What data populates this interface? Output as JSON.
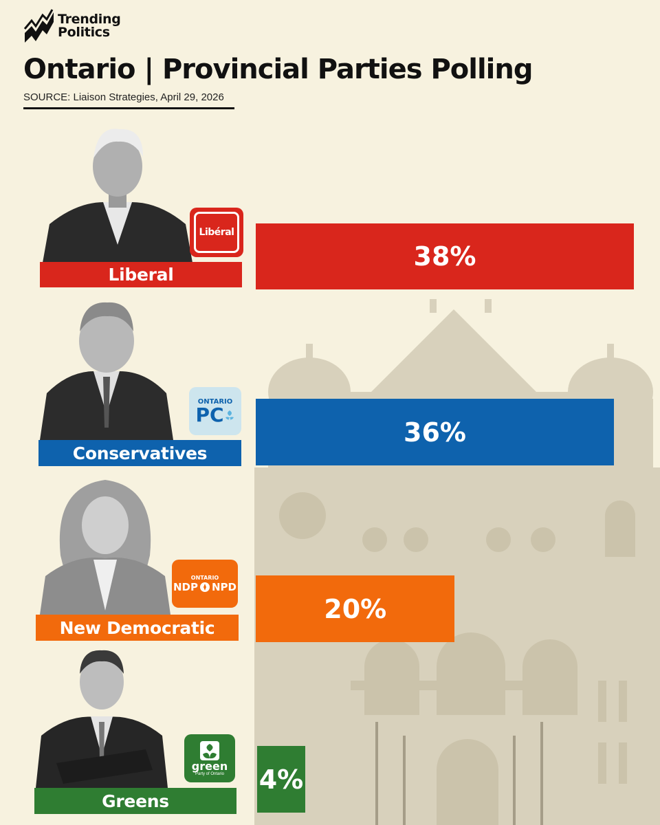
{
  "brand": {
    "line1": "Trending",
    "line2": "Politics"
  },
  "header": {
    "title": "Ontario | Provincial Parties Polling",
    "source": "SOURCE: Liaison Strategies, April 29, 2026"
  },
  "logos": {
    "liberal": "Libéral",
    "pc_top": "ONTARIO",
    "pc_main": "PC",
    "ndp_top": "ONTARIO",
    "ndp_main": "NDP",
    "ndp_alt": "NPD",
    "green_main": "green",
    "green_sub": "Party of Ontario"
  },
  "chart_data": {
    "type": "bar",
    "orientation": "horizontal",
    "categories": [
      "Liberal",
      "Conservatives",
      "New Democratic",
      "Greens"
    ],
    "values": [
      38,
      36,
      20,
      4
    ],
    "labels": [
      "38%",
      "36%",
      "20%",
      "4%"
    ],
    "colors": [
      "#d9261c",
      "#0e62ad",
      "#f26a0c",
      "#2f7d32"
    ],
    "unit": "%",
    "title": "Ontario | Provincial Parties Polling"
  }
}
